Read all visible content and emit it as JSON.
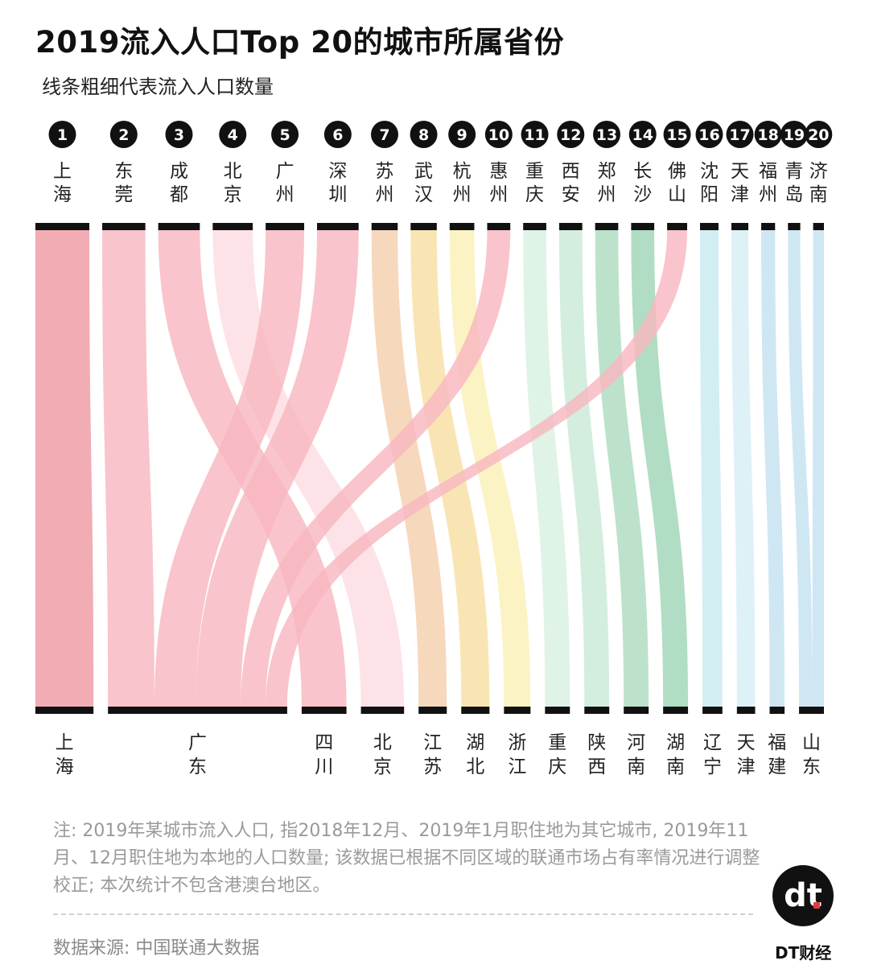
{
  "header": {
    "title": "2019流入人口Top 20的城市所属省份",
    "subtitle": "线条粗细代表流入人口数量"
  },
  "chart_data": {
    "type": "sankey",
    "title": "2019流入人口Top 20的城市所属省份",
    "subtitle": "线条粗细代表流入人口数量",
    "cities": [
      {
        "rank": "1",
        "name": "上海",
        "province": "上海",
        "color": "#ef9aa3",
        "weight": 70
      },
      {
        "rank": "2",
        "name": "东莞",
        "province": "广东",
        "color": "#f8b7c0",
        "weight": 56
      },
      {
        "rank": "3",
        "name": "成都",
        "province": "四川",
        "color": "#f8b7c0",
        "weight": 54
      },
      {
        "rank": "4",
        "name": "北京",
        "province": "北京",
        "color": "#fcdde2",
        "weight": 52
      },
      {
        "rank": "5",
        "name": "广州",
        "province": "广东",
        "color": "#f8b7c0",
        "weight": 50
      },
      {
        "rank": "6",
        "name": "深圳",
        "province": "广东",
        "color": "#f8b7c0",
        "weight": 54
      },
      {
        "rank": "7",
        "name": "苏州",
        "province": "江苏",
        "color": "#f4cfae",
        "weight": 34
      },
      {
        "rank": "8",
        "name": "武汉",
        "province": "湖北",
        "color": "#f8dfa4",
        "weight": 34
      },
      {
        "rank": "9",
        "name": "杭州",
        "province": "浙江",
        "color": "#fbf0b8",
        "weight": 32
      },
      {
        "rank": "10",
        "name": "惠州",
        "province": "广东",
        "color": "#f8b7c0",
        "weight": 30
      },
      {
        "rank": "11",
        "name": "重庆",
        "province": "重庆",
        "color": "#d8f0e2",
        "weight": 30
      },
      {
        "rank": "12",
        "name": "西安",
        "province": "陕西",
        "color": "#c9ead7",
        "weight": 30
      },
      {
        "rank": "13",
        "name": "郑州",
        "province": "河南",
        "color": "#aedcc0",
        "weight": 30
      },
      {
        "rank": "14",
        "name": "长沙",
        "province": "湖南",
        "color": "#9fd6b6",
        "weight": 30
      },
      {
        "rank": "15",
        "name": "佛山",
        "province": "广东",
        "color": "#f8b7c0",
        "weight": 26
      },
      {
        "rank": "16",
        "name": "沈阳",
        "province": "辽宁",
        "color": "#c9eaf0",
        "weight": 24
      },
      {
        "rank": "17",
        "name": "天津",
        "province": "天津",
        "color": "#d6eef5",
        "weight": 22
      },
      {
        "rank": "18",
        "name": "福州",
        "province": "福建",
        "color": "#c5e2f0",
        "weight": 18
      },
      {
        "rank": "19",
        "name": "青岛",
        "province": "山东",
        "color": "#c5e2f0",
        "weight": 16
      },
      {
        "rank": "20",
        "name": "济南",
        "province": "山东",
        "color": "#c5e2f0",
        "weight": 14
      }
    ],
    "provinces": [
      "上海",
      "广东",
      "四川",
      "北京",
      "江苏",
      "湖北",
      "浙江",
      "重庆",
      "陕西",
      "河南",
      "湖南",
      "辽宁",
      "天津",
      "福建",
      "山东"
    ]
  },
  "footer": {
    "note": "注: 2019年某城市流入人口, 指2018年12月、2019年1月职住地为其它城市, 2019年11月、12月职住地为本地的人口数量; 该数据已根据不同区域的联通市场占有率情况进行调整校正; 本次统计不包含港澳台地区。",
    "source": "数据来源: 中国联通大数据",
    "logo_mark": "dt",
    "logo_text": "DT财经"
  }
}
